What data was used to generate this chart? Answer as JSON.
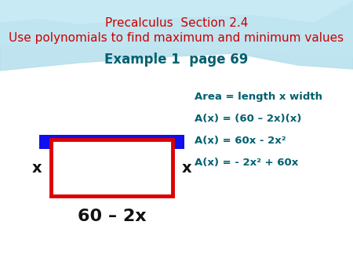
{
  "title_line1": "Precalculus  Section 2.4",
  "title_line2": "Use polynomials to find maximum and minimum values",
  "title_color": "#CC0000",
  "subtitle": "Example 1  page 69",
  "subtitle_color": "#006070",
  "eq_line1": "Area = length x width",
  "eq_line2": "A(x) = (60 – 2x)(x)",
  "eq_line3": "A(x) = 60x - 2x²",
  "eq_line4": "A(x) = - 2x² + 60x",
  "eq_color": "#006070",
  "label_x_color": "#111111",
  "label_bottom_color": "#111111",
  "blue_color": "#1010EE",
  "red_color": "#DD0000",
  "wave_color1": "#A8D8EA",
  "wave_color2": "#C8E8F0",
  "wave_color3": "#E0F2F8"
}
